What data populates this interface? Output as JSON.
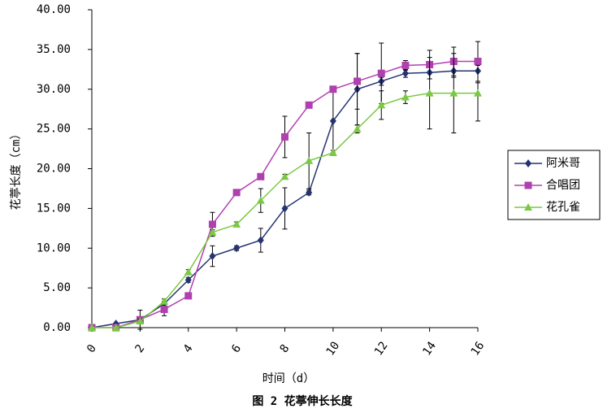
{
  "chart_data": {
    "type": "line",
    "title": "图 2  花葶伸长长度",
    "xlabel": "时间（d）",
    "ylabel": "花葶长度（cm）",
    "x": [
      0,
      1,
      2,
      3,
      4,
      5,
      6,
      7,
      8,
      9,
      10,
      11,
      12,
      13,
      14,
      15,
      16
    ],
    "xlim": [
      0,
      16
    ],
    "xticks": [
      0,
      2,
      4,
      6,
      8,
      10,
      12,
      14,
      16
    ],
    "ylim": [
      0,
      40
    ],
    "yticks": [
      {
        "value": 0,
        "label": "0.00"
      },
      {
        "value": 5,
        "label": "5.00"
      },
      {
        "value": 10,
        "label": "10.00"
      },
      {
        "value": 15,
        "label": "15.00"
      },
      {
        "value": 20,
        "label": "20.00"
      },
      {
        "value": 25,
        "label": "25.00"
      },
      {
        "value": 30,
        "label": "30.00"
      },
      {
        "value": 35,
        "label": "35.00"
      },
      {
        "value": 40,
        "label": "40.00"
      }
    ],
    "legend": "right",
    "series": [
      {
        "name": "阿米哥",
        "color": "#253470",
        "marker": "diamond",
        "values": [
          0,
          0.5,
          1,
          3,
          6,
          9,
          10,
          11,
          15,
          17,
          26,
          30,
          31,
          32,
          32.1,
          32.3,
          32.3
        ],
        "errors": [
          0,
          0,
          1.2,
          0.3,
          0.3,
          1.3,
          0.3,
          1.5,
          2.6,
          0.3,
          4,
          4.5,
          0.5,
          0.5,
          0.8,
          0.8,
          1.5
        ]
      },
      {
        "name": "合唱团",
        "color": "#b040b0",
        "marker": "square",
        "values": [
          0,
          0,
          1,
          2.3,
          4,
          13,
          17,
          19,
          24,
          28,
          30,
          31,
          32,
          33,
          33.1,
          33.5,
          33.5
        ],
        "errors": [
          0,
          0,
          0.3,
          0.8,
          0.3,
          1.5,
          0.3,
          0.3,
          2.6,
          0.3,
          0.3,
          3.5,
          3.8,
          0.6,
          1.8,
          1.8,
          2.5
        ]
      },
      {
        "name": "花孔雀",
        "color": "#7ac943",
        "marker": "triangle",
        "values": [
          0,
          0,
          0.8,
          3.3,
          7,
          12,
          13,
          16,
          19,
          21,
          22,
          25,
          28,
          29,
          29.5,
          29.5,
          29.5
        ],
        "errors": [
          0,
          0,
          0.3,
          0.3,
          0.3,
          0.3,
          0.3,
          1.5,
          0.3,
          3.5,
          0.3,
          0.5,
          1.8,
          0.8,
          4.5,
          5,
          3.5
        ]
      }
    ]
  }
}
